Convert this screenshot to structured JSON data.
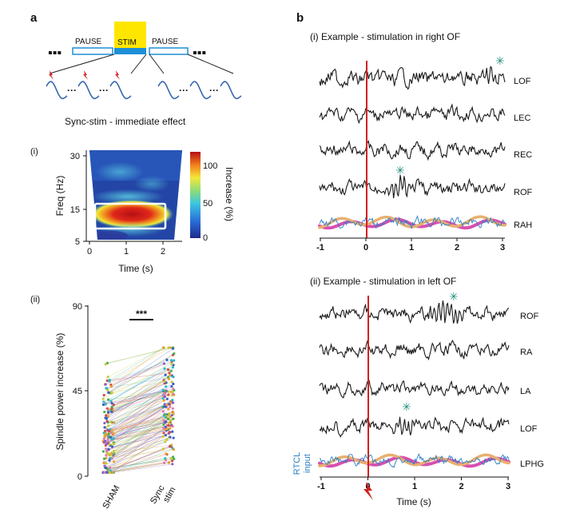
{
  "panel_a": {
    "label": "a",
    "pause_left": "PAUSE",
    "stim": "STIM",
    "pause_right": "PAUSE",
    "caption": "Sync-stim - immediate effect",
    "colors": {
      "stim_fill": "#ffe600",
      "stim_bar": "#1f8fd6",
      "pause_border": "#1f8fd6",
      "wave": "#3a66b0",
      "bolt": "#d42020"
    },
    "heatmap": {
      "label": "(i)",
      "ylabel": "Freq (Hz)",
      "xlabel": "Time (s)",
      "yticks": [
        "30",
        "15",
        "5"
      ],
      "xticks": [
        "0",
        "1",
        "2"
      ],
      "colorbar_label": "Increase  (%)",
      "colorbar_ticks": [
        "100",
        "50",
        "0"
      ]
    },
    "spindle": {
      "label": "(ii)",
      "ylabel": "Spindle power increase (%)",
      "yticks": [
        "90",
        "45",
        "0"
      ],
      "xticks": [
        "SHAM",
        "Sync\nstim"
      ],
      "xtick_sham": "SHAM",
      "xtick_sync_1": "Sync",
      "xtick_sync_2": "stim",
      "significance": "***",
      "ylim": [
        0,
        90
      ]
    }
  },
  "panel_b": {
    "label": "b",
    "colors": {
      "trace": "#1a1a1a",
      "stim_line": "#d42020",
      "star": "#1e8c7a",
      "blue": "#2a7fc4",
      "orange": "#e8b070",
      "pink": "#d94fb0"
    },
    "top": {
      "title": "(i) Example - stimulation in right OF",
      "channels": [
        "LOF",
        "LEC",
        "REC",
        "ROF",
        "RAH"
      ],
      "xticks": [
        "-1",
        "0",
        "1",
        "2",
        "3"
      ]
    },
    "bottom": {
      "title": "(ii) Example - stimulation in left OF",
      "channels": [
        "ROF",
        "RA",
        "LA",
        "LOF",
        "LPHG"
      ],
      "xticks": [
        "-1",
        "0",
        "1",
        "2",
        "3"
      ],
      "xlabel": "Time (s)",
      "side_label_1": "RTCL",
      "side_label_2": "input"
    }
  }
}
